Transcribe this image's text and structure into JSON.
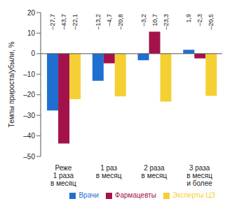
{
  "chart_data": {
    "type": "bar",
    "y_label": "Темпы прироста/убыли, %",
    "categories": [
      "Реже 1 раза в месяц",
      "1 раз в месяц",
      "2 раза в месяц",
      "3 раза в месяц и более"
    ],
    "series": [
      {
        "name": "Врачи",
        "color": "#1f6fd0",
        "values": [
          -27.7,
          -13.2,
          -3.2,
          1.9
        ],
        "value_labels": [
          "–27,7",
          "–13,2",
          "–3,2",
          "1,9"
        ]
      },
      {
        "name": "Фармацевты",
        "color": "#a3124b",
        "values": [
          -43.7,
          -4.7,
          10.7,
          -2.3
        ],
        "value_labels": [
          "–43,7",
          "–4,7",
          "10,7",
          "–2,3"
        ]
      },
      {
        "name": "Эксперты ЦЗ",
        "color": "#f5d034",
        "values": [
          -22.1,
          -20.8,
          -23.3,
          -20.5
        ],
        "value_labels": [
          "–22,1",
          "–20,8",
          "–23,3",
          "–20,5"
        ]
      }
    ],
    "ylim": [
      -50,
      20
    ],
    "yticks": [
      20,
      10,
      0,
      {
        "value": -10,
        "label": "–10"
      },
      {
        "value": -20,
        "label": "–20"
      },
      {
        "value": -30,
        "label": "–30"
      },
      {
        "value": -40,
        "label": "–40"
      },
      {
        "value": -50,
        "label": "–50"
      }
    ],
    "grid": false,
    "legend": "bottom",
    "data_labels": true
  }
}
